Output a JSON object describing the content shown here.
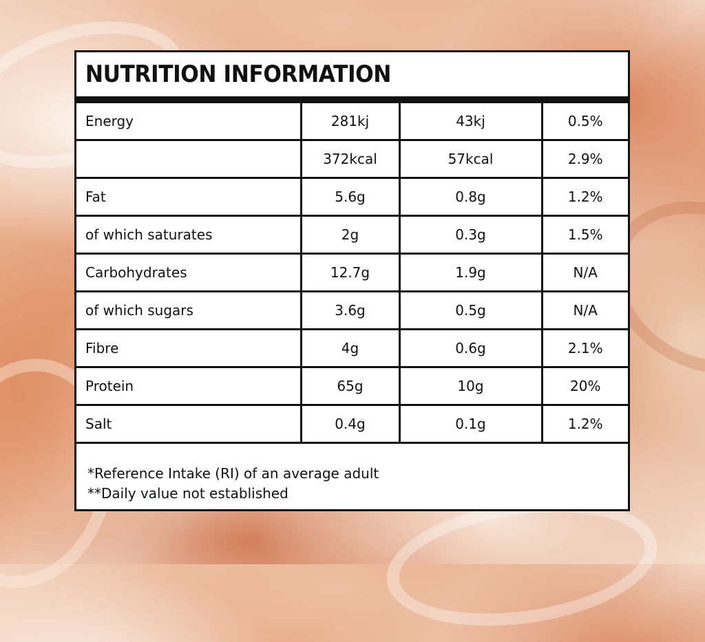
{
  "title": "NUTRITION INFORMATION",
  "rows": [
    {
      "label": "Energy",
      "per_100g": "281kj",
      "per_serving": "43kj",
      "ri": "0.5%"
    },
    {
      "label": "",
      "per_100g": "372kcal",
      "per_serving": "57kcal",
      "ri": "2.9%"
    },
    {
      "label": "Fat",
      "per_100g": "5.6g",
      "per_serving": "0.8g",
      "ri": "1.2%"
    },
    {
      "label": "of which saturates",
      "per_100g": "2g",
      "per_serving": "0.3g",
      "ri": "1.5%"
    },
    {
      "label": "Carbohydrates",
      "per_100g": "12.7g",
      "per_serving": "1.9g",
      "ri": "N/A"
    },
    {
      "label": "of which sugars",
      "per_100g": "3.6g",
      "per_serving": "0.5g",
      "ri": "N/A"
    },
    {
      "label": "Fibre",
      "per_100g": "4g",
      "per_serving": "0.6g",
      "ri": "2.1%"
    },
    {
      "label": "Protein",
      "per_100g": "65g",
      "per_serving": "10g",
      "ri": "20%"
    },
    {
      "label": "Salt",
      "per_100g": "0.4g",
      "per_serving": "0.1g",
      "ri": "1.2%"
    }
  ],
  "footnotes": {
    "reference_intake": "*Reference Intake (RI) of an average adult",
    "daily_value": "**Daily value not established"
  },
  "colors": {
    "ink": "#111111",
    "panel": "#ffffff",
    "background_accent": "#e4a27c"
  }
}
